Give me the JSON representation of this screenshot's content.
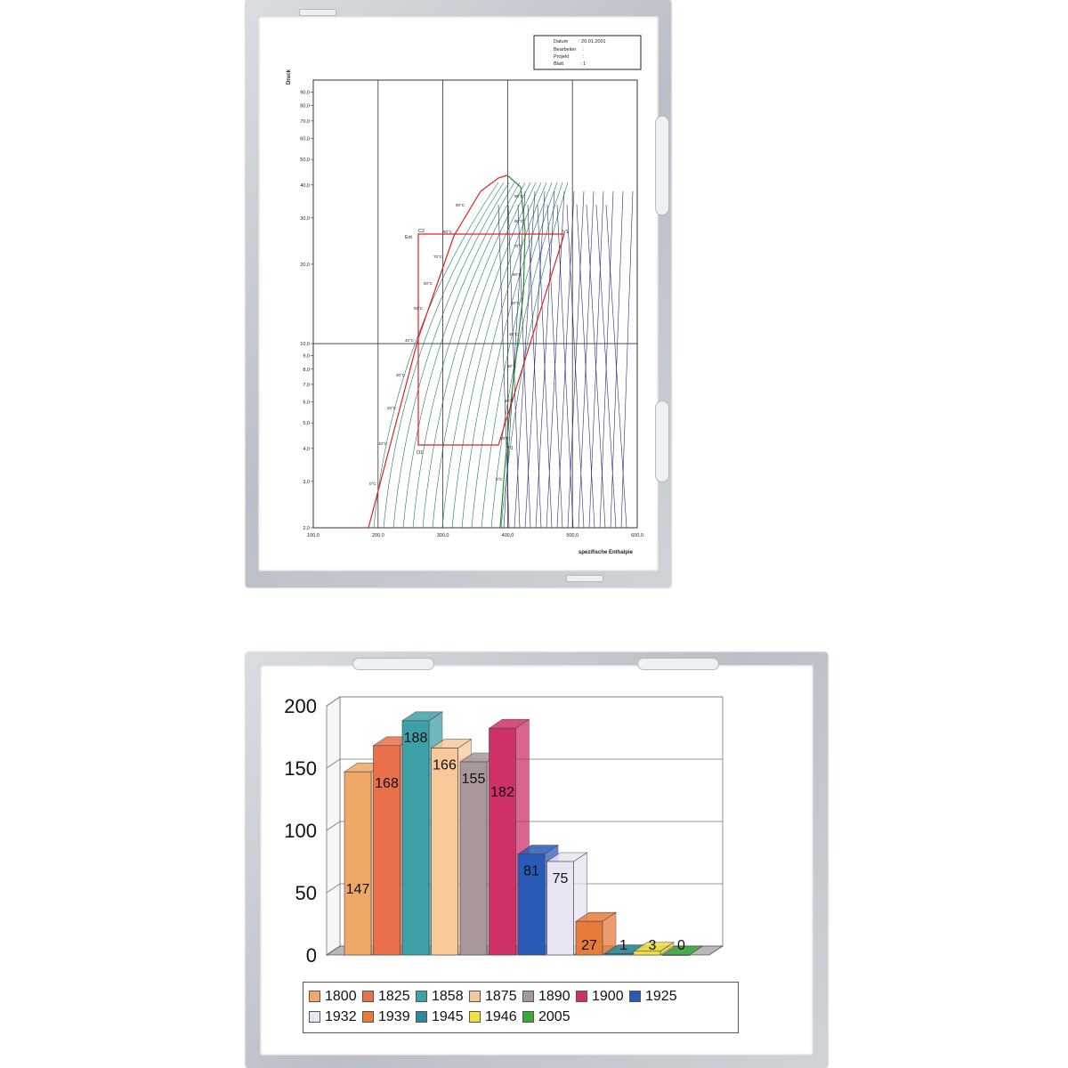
{
  "top_frame": {
    "title_block": {
      "rows": [
        {
          "label": "Datum",
          "value": ": 20.01.2001"
        },
        {
          "label": "Bearbeiter",
          "value": ":"
        },
        {
          "label": "Projekt",
          "value": ":"
        },
        {
          "label": "Blatt",
          "value": ": 1"
        }
      ]
    },
    "diagram": {
      "y_axis_label": "Druck",
      "x_axis_label": "spezifische Enthalpie",
      "y_ticks": [
        "90,0",
        "80,0",
        "70,0",
        "60,0",
        "50,0",
        "40,0",
        "30,0",
        "20,0",
        "10,0",
        "9,0",
        "8,0",
        "7,0",
        "6,0",
        "5,0",
        "4,0",
        "3,0",
        "2,0"
      ],
      "x_ticks": [
        "100,0",
        "200,0",
        "300,0",
        "400,0",
        "500,0",
        "600,0"
      ],
      "point_labels": [
        "C2",
        "Ext",
        "O1",
        "Y1",
        "V1"
      ],
      "temperature_labels": [
        "90°C",
        "80°C",
        "70°C",
        "60°C",
        "50°C",
        "40°C",
        "30°C",
        "20°C",
        "10°C",
        "0°C"
      ],
      "colors": {
        "cycle": "#e02020",
        "isotherm": "#1a7a6a",
        "entropy": "#2a2a7a",
        "vapor": "#2a8a2a",
        "grid": "#333333"
      }
    }
  },
  "bottom_frame": {
    "chart_data": {
      "type": "bar",
      "title": "",
      "xlabel": "",
      "ylabel": "",
      "ylim": [
        0,
        200
      ],
      "y_ticks": [
        "0",
        "50",
        "100",
        "150",
        "200"
      ],
      "grid": true,
      "legend_position": "bottom",
      "categories": [
        "1800",
        "1825",
        "1858",
        "1875",
        "1890",
        "1900",
        "1925",
        "1932",
        "1939",
        "1945",
        "1946",
        "2005"
      ],
      "values": [
        147,
        168,
        188,
        166,
        155,
        182,
        81,
        75,
        27,
        1,
        3,
        0
      ],
      "value_labels": [
        "147",
        "168",
        "188",
        "166",
        "155",
        "182",
        "81",
        "75",
        "27",
        "1",
        "3",
        "0"
      ],
      "colors": [
        "#f0a868",
        "#e8704a",
        "#3ea0a8",
        "#f6c89a",
        "#a8989a",
        "#d0306a",
        "#2a5ab8",
        "#e8e4f4",
        "#e87a3a",
        "#2a8a9a",
        "#f0e040",
        "#3aa83a"
      ]
    }
  }
}
